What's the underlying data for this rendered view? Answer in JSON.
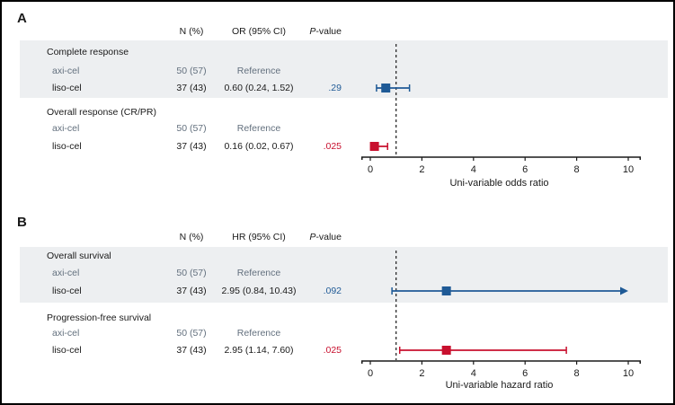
{
  "colors": {
    "ink": "#1a1a1a",
    "blue": "#1f5a96",
    "red": "#c8102e",
    "slate": "#63707e",
    "band": "#edeff1"
  },
  "figure": {
    "panels": [
      {
        "label": "A",
        "columns": {
          "n": "N (%)",
          "estimate": "OR (95% CI)",
          "p_italic": "P",
          "p_rest": "-value"
        },
        "sections": [
          {
            "title": "Complete response",
            "rows": [
              {
                "name": "axi-cel",
                "n_pct": "50 (57)",
                "estimate": "Reference",
                "p": ""
              },
              {
                "name": "liso-cel",
                "n_pct": "37 (43)",
                "estimate": "0.60 (0.24, 1.52)",
                "p": ".29"
              }
            ]
          },
          {
            "title": "Overall response (CR/PR)",
            "rows": [
              {
                "name": "axi-cel",
                "n_pct": "50 (57)",
                "estimate": "Reference",
                "p": ""
              },
              {
                "name": "liso-cel",
                "n_pct": "37 (43)",
                "estimate": "0.16 (0.02, 0.67)",
                "p": ".025"
              }
            ]
          }
        ]
      },
      {
        "label": "B",
        "columns": {
          "n": "N (%)",
          "estimate": "HR (95% CI)",
          "p_italic": "P",
          "p_rest": "-value"
        },
        "sections": [
          {
            "title": "Overall survival",
            "rows": [
              {
                "name": "axi-cel",
                "n_pct": "50 (57)",
                "estimate": "Reference",
                "p": ""
              },
              {
                "name": "liso-cel",
                "n_pct": "37 (43)",
                "estimate": "2.95 (0.84, 10.43)",
                "p": ".092"
              }
            ]
          },
          {
            "title": "Progression-free survival",
            "rows": [
              {
                "name": "axi-cel",
                "n_pct": "50 (57)",
                "estimate": "Reference",
                "p": ""
              },
              {
                "name": "liso-cel",
                "n_pct": "37 (43)",
                "estimate": "2.95 (1.14, 7.60)",
                "p": ".025"
              }
            ]
          }
        ]
      }
    ]
  },
  "chart_data": [
    {
      "type": "scatter",
      "subtype": "forest-plot",
      "title": "A",
      "xlabel": "Uni-variable odds ratio",
      "xlim": [
        0,
        10
      ],
      "xticks": [
        0,
        2,
        4,
        6,
        8,
        10
      ],
      "reference_line": 1,
      "series": [
        {
          "name": "Complete response: liso-cel vs axi-cel",
          "estimate": 0.6,
          "ci_low": 0.24,
          "ci_high": 1.52,
          "p_value": ".29",
          "color": "#1f5a96"
        },
        {
          "name": "Overall response (CR/PR): liso-cel vs axi-cel",
          "estimate": 0.16,
          "ci_low": 0.02,
          "ci_high": 0.67,
          "p_value": ".025",
          "color": "#c8102e"
        }
      ]
    },
    {
      "type": "scatter",
      "subtype": "forest-plot",
      "title": "B",
      "xlabel": "Uni-variable hazard ratio",
      "xlim": [
        0,
        10
      ],
      "xticks": [
        0,
        2,
        4,
        6,
        8,
        10
      ],
      "reference_line": 1,
      "series": [
        {
          "name": "Overall survival: liso-cel vs axi-cel",
          "estimate": 2.95,
          "ci_low": 0.84,
          "ci_high": 10.43,
          "ci_high_offscale": true,
          "p_value": ".092",
          "color": "#1f5a96"
        },
        {
          "name": "Progression-free survival: liso-cel vs axi-cel",
          "estimate": 2.95,
          "ci_low": 1.14,
          "ci_high": 7.6,
          "p_value": ".025",
          "color": "#c8102e"
        }
      ]
    }
  ]
}
